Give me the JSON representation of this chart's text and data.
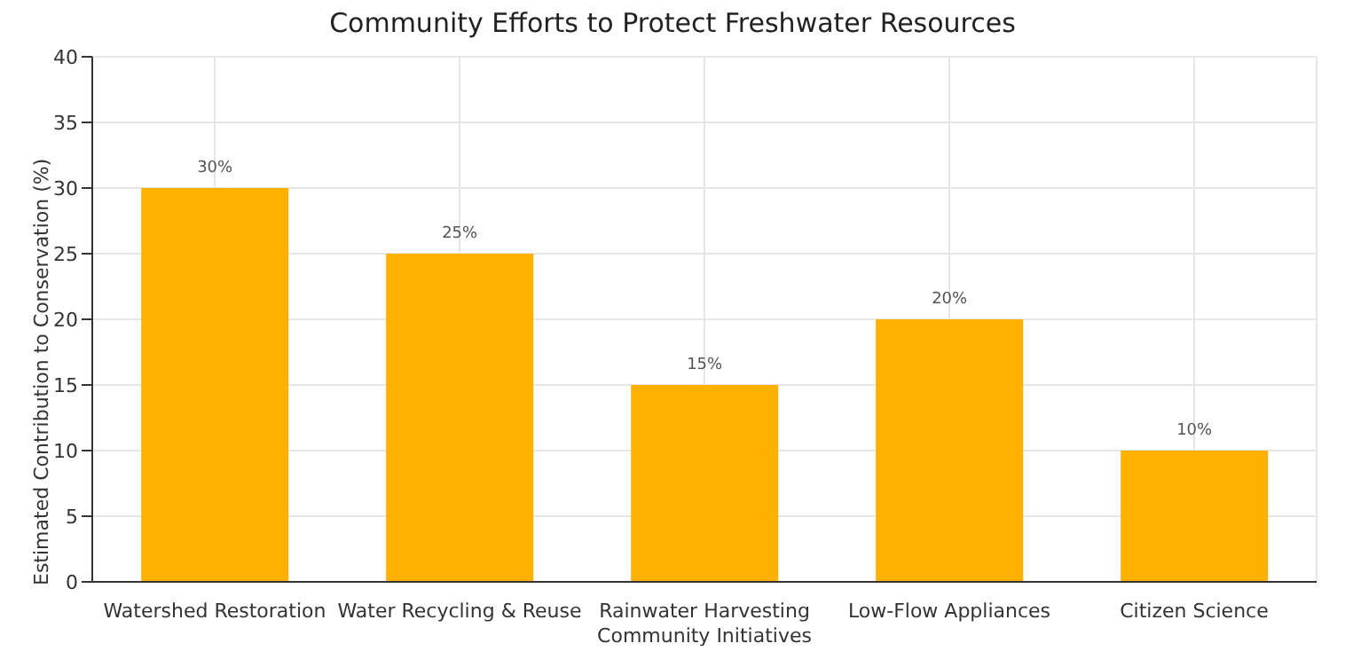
{
  "chart_data": {
    "type": "bar",
    "title": "Community Efforts to Protect Freshwater Resources",
    "ylabel": "Estimated Contribution to Conservation (%)",
    "categories": [
      "Watershed Restoration",
      "Water Recycling & Reuse",
      "Rainwater Harvesting Community Initiatives",
      "Low-Flow Appliances",
      "Citizen Science"
    ],
    "values": [
      30,
      25,
      15,
      20,
      10
    ],
    "value_labels": [
      "30%",
      "25%",
      "15%",
      "20%",
      "10%"
    ],
    "color": "#ffb000",
    "ylim": [
      0,
      40
    ],
    "yticks": [
      0,
      5,
      10,
      15,
      20,
      25,
      30,
      35,
      40
    ],
    "grid": true
  }
}
